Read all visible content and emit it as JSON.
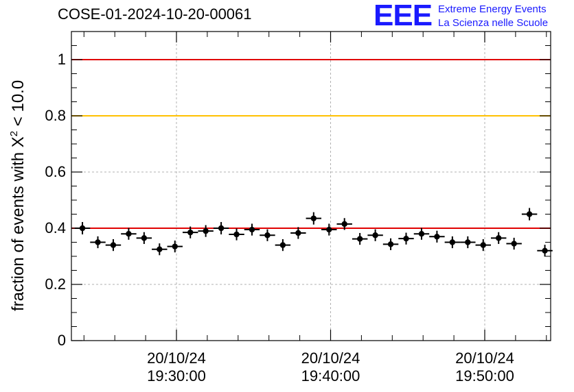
{
  "header": {
    "title": "COSE-01-2024-10-20-00061",
    "logo_mark": "EEE",
    "logo_line1": "Extreme Energy Events",
    "logo_line2": "La Scienza nelle Scuole"
  },
  "chart_data": {
    "type": "scatter",
    "title": "COSE-01-2024-10-20-00061",
    "xlabel": "",
    "ylabel_prefix": "fraction of events with ",
    "ylabel_symbol": "X",
    "ylabel_exp": "2",
    "ylabel_suffix": " < 10.0",
    "ylim": [
      0,
      1.1
    ],
    "grid": true,
    "yticks": [
      "0",
      "0.2",
      "0.4",
      "0.6",
      "0.8",
      "1"
    ],
    "xtick_labels": [
      {
        "date": "20/10/24",
        "time": "19:30:00"
      },
      {
        "date": "20/10/24",
        "time": "19:40:00"
      },
      {
        "date": "20/10/24",
        "time": "19:50:00"
      }
    ],
    "x_range_minutes": [
      -6.1,
      24.3
    ],
    "bin_width_minutes": 1,
    "reference_lines": [
      {
        "value": 1.0,
        "color": "#e00000"
      },
      {
        "value": 0.8,
        "color": "#ffc000"
      },
      {
        "value": 0.4,
        "color": "#e00000"
      }
    ],
    "series": [
      {
        "name": "fraction",
        "x_minutes": [
          -6.1,
          -5.1,
          -4.1,
          -3.1,
          -2.1,
          -1.1,
          -0.1,
          0.9,
          1.9,
          2.9,
          3.9,
          4.9,
          5.9,
          6.9,
          7.9,
          8.9,
          9.9,
          10.9,
          11.9,
          12.9,
          13.9,
          14.9,
          15.9,
          16.9,
          17.9,
          18.9,
          19.9,
          20.9,
          21.9,
          22.9,
          23.9
        ],
        "values": [
          0.4,
          0.35,
          0.34,
          0.38,
          0.365,
          0.325,
          0.335,
          0.385,
          0.39,
          0.4,
          0.378,
          0.395,
          0.375,
          0.34,
          0.383,
          0.435,
          0.395,
          0.415,
          0.362,
          0.375,
          0.343,
          0.363,
          0.38,
          0.37,
          0.35,
          0.35,
          0.34,
          0.365,
          0.345,
          0.45,
          0.32
        ],
        "errors": [
          0.022,
          0.021,
          0.021,
          0.021,
          0.021,
          0.021,
          0.021,
          0.021,
          0.021,
          0.022,
          0.021,
          0.021,
          0.021,
          0.021,
          0.021,
          0.022,
          0.021,
          0.021,
          0.021,
          0.021,
          0.021,
          0.021,
          0.021,
          0.021,
          0.021,
          0.021,
          0.021,
          0.021,
          0.021,
          0.022,
          0.021
        ]
      }
    ]
  }
}
